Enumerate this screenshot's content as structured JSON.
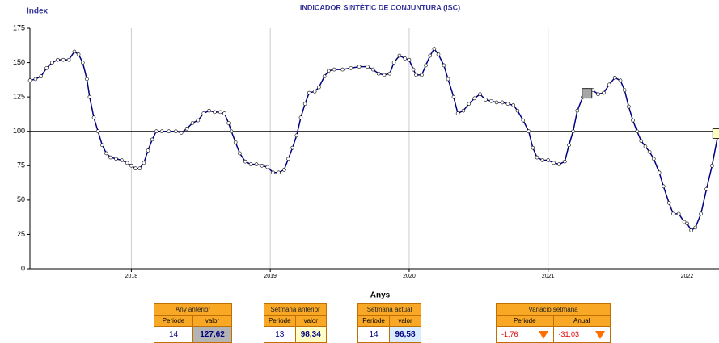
{
  "chart_data": {
    "type": "line",
    "title": "INDICADOR SINTÈTIC DE CONJUNTURA (ISC)",
    "y_label": "Index",
    "x_label": "Anys",
    "x": [
      2017.27,
      2017.31,
      2017.35,
      2017.39,
      2017.43,
      2017.47,
      2017.51,
      2017.55,
      2017.59,
      2017.62,
      2017.65,
      2017.68,
      2017.7,
      2017.73,
      2017.76,
      2017.79,
      2017.82,
      2017.85,
      2017.89,
      2017.93,
      2017.97,
      2018.0,
      2018.03,
      2018.06,
      2018.09,
      2018.12,
      2018.15,
      2018.18,
      2018.22,
      2018.27,
      2018.32,
      2018.36,
      2018.4,
      2018.44,
      2018.48,
      2018.52,
      2018.56,
      2018.6,
      2018.64,
      2018.67,
      2018.7,
      2018.72,
      2018.75,
      2018.78,
      2018.82,
      2018.86,
      2018.9,
      2018.94,
      2018.98,
      2019.02,
      2019.06,
      2019.1,
      2019.13,
      2019.16,
      2019.19,
      2019.22,
      2019.25,
      2019.28,
      2019.32,
      2019.35,
      2019.39,
      2019.42,
      2019.46,
      2019.52,
      2019.58,
      2019.64,
      2019.7,
      2019.74,
      2019.78,
      2019.82,
      2019.86,
      2019.89,
      2019.93,
      2019.97,
      2020.0,
      2020.03,
      2020.05,
      2020.09,
      2020.12,
      2020.15,
      2020.18,
      2020.21,
      2020.25,
      2020.28,
      2020.32,
      2020.35,
      2020.39,
      2020.43,
      2020.47,
      2020.51,
      2020.55,
      2020.59,
      2020.63,
      2020.67,
      2020.71,
      2020.75,
      2020.78,
      2020.82,
      2020.86,
      2020.89,
      2020.92,
      2020.96,
      2021.0,
      2021.04,
      2021.08,
      2021.12,
      2021.15,
      2021.18,
      2021.21,
      2021.25,
      2021.28,
      2021.32,
      2021.36,
      2021.4,
      2021.44,
      2021.48,
      2021.52,
      2021.55,
      2021.58,
      2021.61,
      2021.64,
      2021.67,
      2021.7,
      2021.73,
      2021.76,
      2021.8,
      2021.83,
      2021.87,
      2021.9,
      2021.94,
      2021.98,
      2022.0,
      2022.03,
      2022.06,
      2022.1,
      2022.14,
      2022.18,
      2022.22
    ],
    "series": [
      {
        "name": "ISC",
        "color": "#000080",
        "values": [
          137,
          138,
          140,
          146,
          150,
          152,
          152,
          152,
          158,
          156,
          150,
          138,
          125,
          110,
          100,
          90,
          84,
          81,
          80,
          79,
          77,
          75,
          73,
          73,
          77,
          86,
          94,
          100,
          100,
          100,
          100,
          99,
          102,
          106,
          108,
          113,
          115,
          114,
          114,
          113,
          106,
          100,
          92,
          84,
          78,
          76,
          76,
          75,
          74,
          70,
          70,
          72,
          80,
          88,
          97,
          110,
          120,
          128,
          129,
          132,
          140,
          144,
          145,
          145,
          146,
          147,
          147,
          145,
          142,
          141,
          142,
          150,
          155,
          153,
          152,
          145,
          141,
          141,
          148,
          155,
          160,
          156,
          148,
          138,
          125,
          113,
          115,
          120,
          124,
          127,
          123,
          122,
          121,
          121,
          120,
          119,
          115,
          108,
          100,
          88,
          81,
          79,
          79,
          77,
          76,
          78,
          90,
          100,
          115,
          125,
          130,
          130,
          127,
          128,
          134,
          139,
          137,
          130,
          118,
          108,
          100,
          93,
          89,
          85,
          80,
          70,
          60,
          48,
          40,
          40,
          34,
          33,
          28,
          30,
          40,
          58,
          75,
          96
        ]
      }
    ],
    "highlights": [
      {
        "x": 2021.28,
        "value": 127.62,
        "color": "#a6a6a6"
      },
      {
        "x": 2022.22,
        "value": 98.34,
        "color": "#ffffc0"
      }
    ],
    "reference_line": 100,
    "xlim": [
      2017.27,
      2022.23
    ],
    "xticks": [
      2018,
      2019,
      2020,
      2021,
      2022
    ],
    "ylim": [
      0,
      175
    ],
    "yticks": [
      0,
      25,
      50,
      75,
      100,
      125,
      150,
      175
    ],
    "grid": true
  },
  "panels": [
    {
      "title": "Any anterior",
      "headers": [
        "Periode",
        "valor"
      ],
      "cells": [
        "14",
        "127,62"
      ],
      "value_bg": "#b4b4b4"
    },
    {
      "title": "Setmana anterior",
      "headers": [
        "Periode",
        "valor"
      ],
      "cells": [
        "13",
        "98,34"
      ],
      "value_bg": "#ffffc8"
    },
    {
      "title": "Setmana actual",
      "headers": [
        "Periode",
        "valor"
      ],
      "cells": [
        "14",
        "96,58"
      ],
      "value_bg": "#dcecff"
    },
    {
      "title": "Variació setmana",
      "headers": [
        "Periode",
        "Anual"
      ],
      "cells": [
        "-1,76",
        "-31,03"
      ],
      "value_bg": "#ffffff",
      "trend": "down"
    }
  ]
}
